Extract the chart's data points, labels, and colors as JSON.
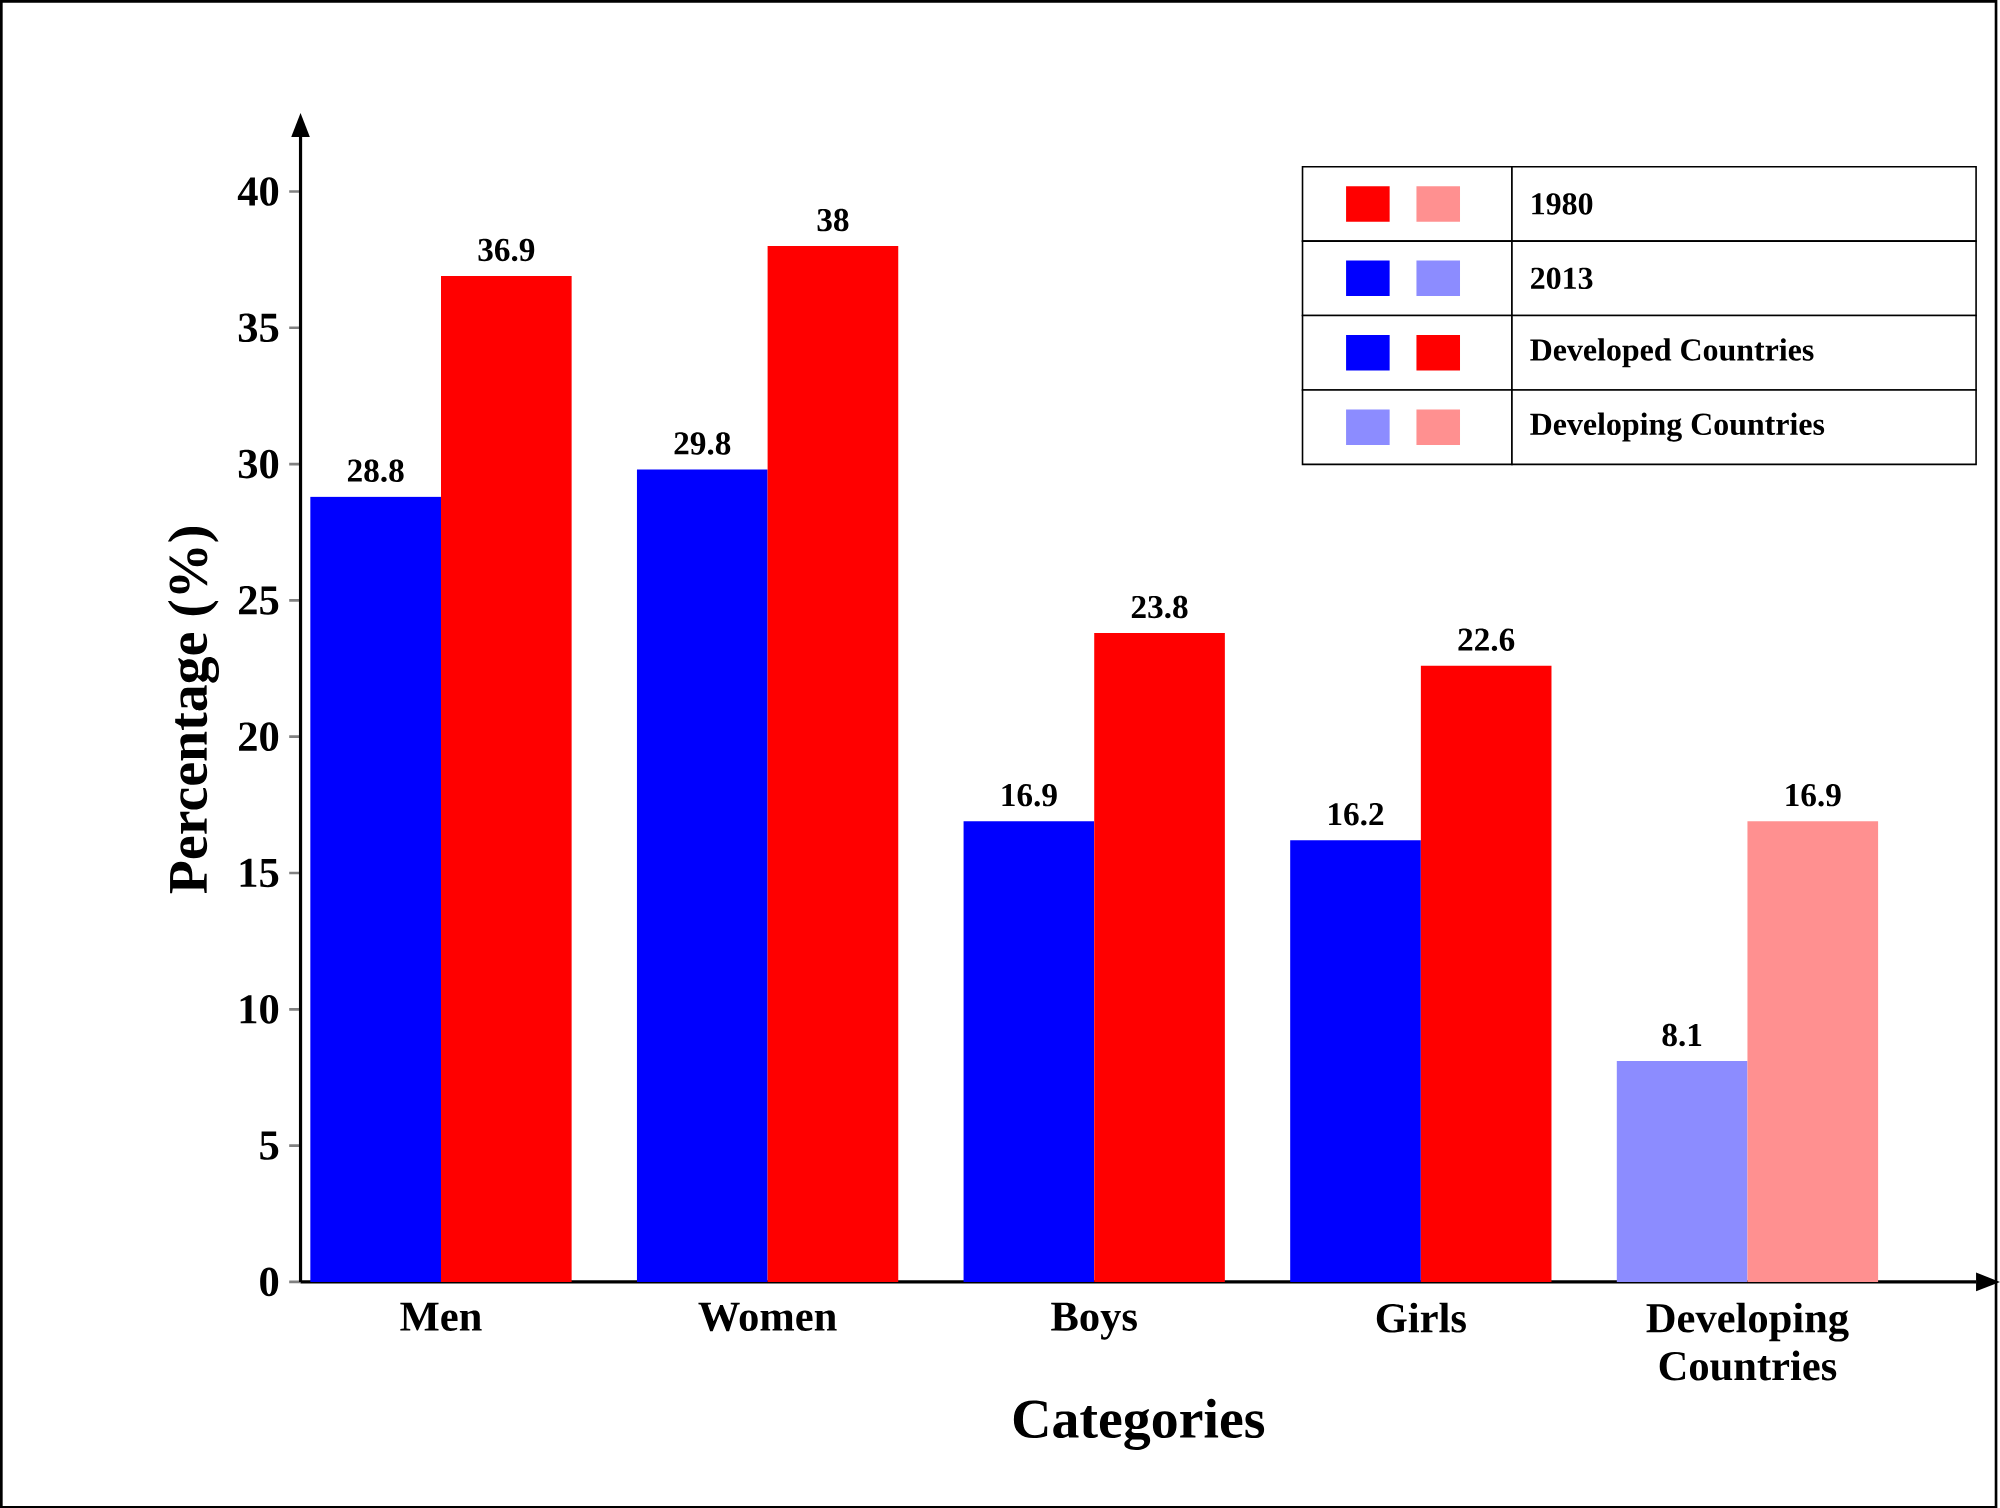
{
  "chart_data": {
    "type": "bar",
    "xlabel": "Categories",
    "ylabel": "Percentage (%)",
    "categories": [
      "Men",
      "Women",
      "Boys",
      "Girls",
      "Developing Countries"
    ],
    "series": [
      {
        "name": "2013",
        "color": "#0000ff",
        "colors": [
          "#0000ff",
          "#0000ff",
          "#0000ff",
          "#0000ff",
          "#8c8cff"
        ],
        "values": [
          28.8,
          29.8,
          16.9,
          16.2,
          8.1
        ]
      },
      {
        "name": "1980",
        "color": "#ff0000",
        "colors": [
          "#ff0000",
          "#ff0000",
          "#ff0000",
          "#ff0000",
          "#ff9090"
        ],
        "values": [
          36.9,
          38,
          23.8,
          22.6,
          16.9
        ]
      }
    ],
    "annotations": [
      "Developed Countries",
      "Developing Countries"
    ],
    "ylim": [
      0,
      42
    ],
    "yticks": [
      0,
      5,
      10,
      15,
      20,
      25,
      30,
      35,
      40
    ],
    "data_labels": true,
    "legend": "top right",
    "grid": false
  }
}
